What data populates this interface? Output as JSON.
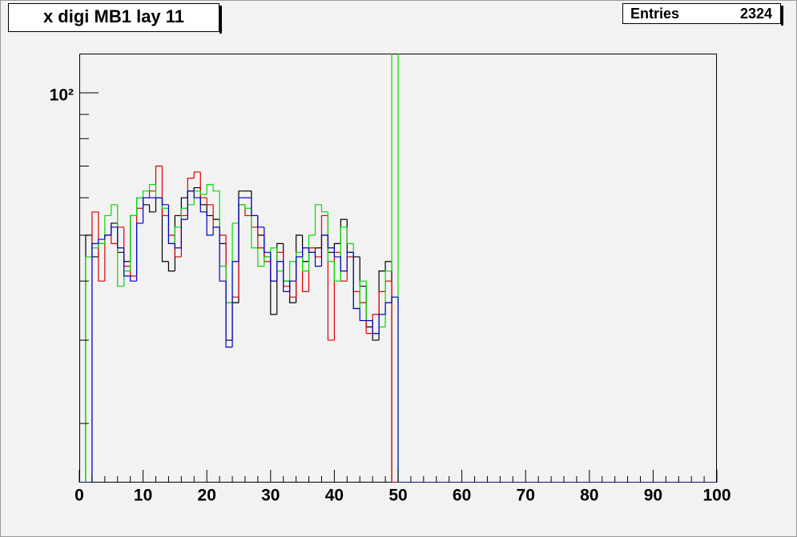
{
  "chart_data": {
    "type": "histogram",
    "title": "x digi MB1 lay 11",
    "stats": {
      "label": "Entries",
      "value": 2324
    },
    "log_y": true,
    "xlim": [
      0,
      100
    ],
    "xticks": [
      0,
      10,
      20,
      30,
      40,
      50,
      60,
      70,
      80,
      90,
      100
    ],
    "ylim": [
      15,
      121
    ],
    "yticks": [
      {
        "value": 100,
        "label": "10²"
      }
    ],
    "yminorticks": [
      20,
      30,
      40,
      50,
      60,
      70,
      80,
      90
    ],
    "bins": [
      0,
      1,
      2,
      3,
      4,
      5,
      6,
      7,
      8,
      9,
      10,
      11,
      12,
      13,
      14,
      15,
      16,
      17,
      18,
      19,
      20,
      21,
      22,
      23,
      24,
      25,
      26,
      27,
      28,
      29,
      30,
      31,
      32,
      33,
      34,
      35,
      36,
      37,
      38,
      39,
      40,
      41,
      42,
      43,
      44,
      45,
      46,
      47,
      48,
      49,
      50,
      51,
      52,
      53,
      54,
      55,
      56,
      57,
      58,
      59,
      60,
      61,
      62,
      63,
      64,
      65,
      66,
      67,
      68,
      69,
      70,
      71,
      72,
      73,
      74,
      75,
      76,
      77,
      78,
      79,
      80,
      81,
      82,
      83,
      84,
      85,
      86,
      87,
      88,
      89,
      90,
      91,
      92,
      93,
      94,
      95,
      96,
      97,
      98,
      99,
      100
    ],
    "series": [
      {
        "color": "#000000",
        "values": [
          0,
          50,
          45,
          48,
          50,
          53,
          46,
          44,
          55,
          60,
          58,
          56,
          60,
          44,
          42,
          55,
          60,
          62,
          63,
          58,
          55,
          54,
          48,
          30,
          36,
          62,
          62,
          55,
          50,
          45,
          34,
          48,
          40,
          36,
          50,
          44,
          46,
          47,
          50,
          46,
          48,
          54,
          46,
          45,
          39,
          32,
          30,
          42,
          44,
          0,
          0,
          0,
          0,
          0,
          0,
          0,
          0,
          0,
          0,
          0,
          0,
          0,
          0,
          0,
          0,
          0,
          0,
          0,
          0,
          0,
          0,
          0,
          0,
          0,
          0,
          0,
          0,
          0,
          0,
          0,
          0,
          0,
          0,
          0,
          0,
          0,
          0,
          0,
          0,
          0,
          0,
          0,
          0,
          0,
          0,
          0,
          0,
          0,
          0,
          0
        ]
      },
      {
        "color": "#dd0000",
        "values": [
          0,
          0,
          56,
          40,
          50,
          48,
          52,
          43,
          41,
          57,
          60,
          62,
          70,
          55,
          50,
          45,
          55,
          66,
          68,
          60,
          58,
          52,
          50,
          36,
          37,
          58,
          55,
          52,
          47,
          44,
          40,
          46,
          39,
          37,
          45,
          38,
          47,
          45,
          55,
          30,
          46,
          40,
          45,
          38,
          36,
          31,
          34,
          38,
          40,
          0,
          0,
          0,
          0,
          0,
          0,
          0,
          0,
          0,
          0,
          0,
          0,
          0,
          0,
          0,
          0,
          0,
          0,
          0,
          0,
          0,
          0,
          0,
          0,
          0,
          0,
          0,
          0,
          0,
          0,
          0,
          0,
          0,
          0,
          0,
          0,
          0,
          0,
          0,
          0,
          0,
          0,
          0,
          0,
          0,
          0,
          0,
          0,
          0,
          0,
          0
        ]
      },
      {
        "color": "#00dd00",
        "values": [
          0,
          45,
          47,
          48,
          55,
          58,
          39,
          42,
          55,
          60,
          62,
          64,
          60,
          57,
          48,
          52,
          57,
          58,
          62,
          61,
          64,
          62,
          43,
          36,
          53,
          58,
          57,
          47,
          43,
          45,
          47,
          42,
          40,
          44,
          46,
          42,
          50,
          58,
          56,
          44,
          40,
          52,
          48,
          35,
          40,
          33,
          31,
          32,
          42,
          125,
          0,
          0,
          0,
          0,
          0,
          0,
          0,
          0,
          0,
          0,
          0,
          0,
          0,
          0,
          0,
          0,
          0,
          0,
          0,
          0,
          0,
          0,
          0,
          0,
          0,
          0,
          0,
          0,
          0,
          0,
          0,
          0,
          0,
          0,
          0,
          0,
          0,
          0,
          0,
          0,
          0,
          0,
          0,
          0,
          0,
          0,
          0,
          0,
          0,
          0
        ]
      },
      {
        "color": "#0000cc",
        "values": [
          0,
          0,
          48,
          49,
          50,
          52,
          47,
          41,
          40,
          53,
          60,
          60,
          60,
          58,
          48,
          47,
          54,
          62,
          60,
          56,
          50,
          52,
          40,
          29,
          44,
          60,
          60,
          55,
          52,
          46,
          40,
          44,
          38,
          40,
          45,
          47,
          46,
          43,
          50,
          47,
          45,
          42,
          46,
          35,
          33,
          33,
          31,
          34,
          36,
          37,
          0,
          0,
          0,
          0,
          0,
          0,
          0,
          0,
          0,
          0,
          0,
          0,
          0,
          0,
          0,
          0,
          0,
          0,
          0,
          0,
          0,
          0,
          0,
          0,
          0,
          0,
          0,
          0,
          0,
          0,
          0,
          0,
          0,
          0,
          0,
          0,
          0,
          0,
          0,
          0,
          0,
          0,
          0,
          0,
          0,
          0,
          0,
          0,
          0,
          0
        ]
      }
    ]
  }
}
